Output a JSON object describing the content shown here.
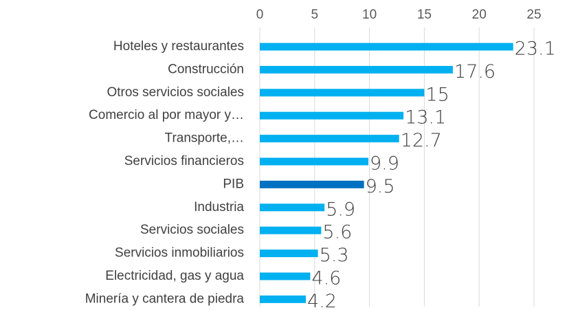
{
  "chart_data": {
    "type": "bar",
    "orientation": "horizontal",
    "categories": [
      "Hoteles y restaurantes",
      "Construcción",
      "Otros servicios sociales",
      "Comercio al por mayor y…",
      "Transporte,…",
      "Servicios financieros",
      "PIB",
      "Industria",
      "Servicios sociales",
      "Servicios inmobiliarios",
      "Electricidad, gas y agua",
      "Minería y cantera de piedra"
    ],
    "values": [
      23.1,
      17.6,
      15,
      13.1,
      12.7,
      9.9,
      9.5,
      5.9,
      5.6,
      5.3,
      4.6,
      4.2
    ],
    "colors": [
      "#00b0f0",
      "#00b0f0",
      "#00b0f0",
      "#00b0f0",
      "#00b0f0",
      "#00b0f0",
      "#0070c0",
      "#00b0f0",
      "#00b0f0",
      "#00b0f0",
      "#00b0f0",
      "#00b0f0"
    ],
    "xlim": [
      0,
      25
    ],
    "xticks": [
      0,
      5,
      10,
      15,
      20,
      25
    ],
    "grid": true
  }
}
